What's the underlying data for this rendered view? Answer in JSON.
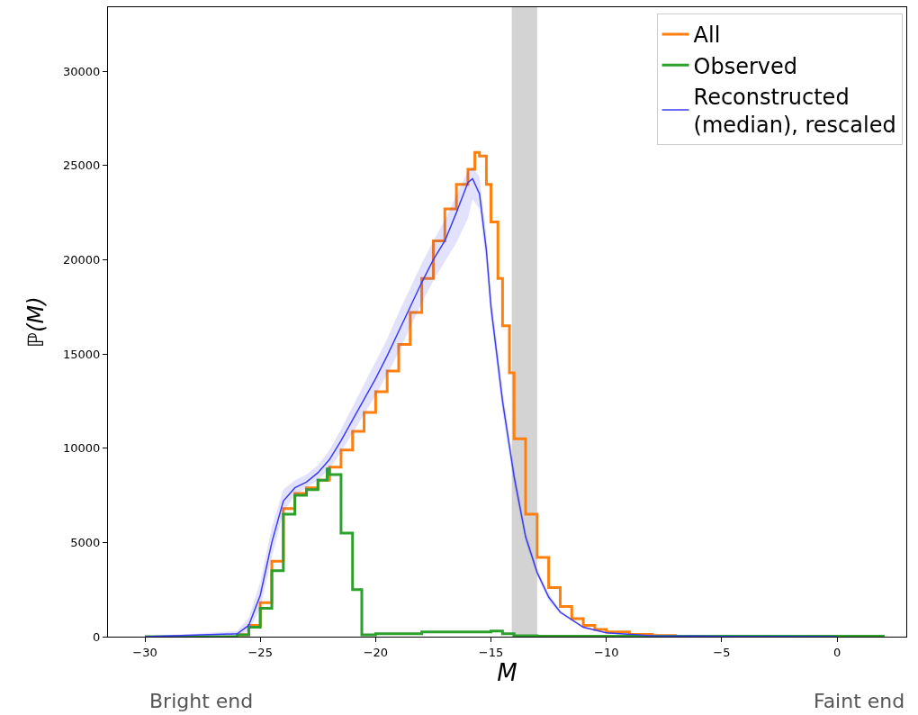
{
  "chart_data": {
    "type": "line",
    "xlabel": "M",
    "ylabel": "ℙ(M)",
    "xlim": [
      -31.6,
      3.0
    ],
    "ylim": [
      0,
      33400
    ],
    "xticks": [
      {
        "value": -30,
        "label": "−30"
      },
      {
        "value": -25,
        "label": "−25"
      },
      {
        "value": -20,
        "label": "−20"
      },
      {
        "value": -15,
        "label": "−15"
      },
      {
        "value": -10,
        "label": "−10"
      },
      {
        "value": -5,
        "label": "−5"
      },
      0
    ],
    "yticks": [
      0,
      5000,
      10000,
      15000,
      20000,
      25000,
      30000
    ],
    "grid": false,
    "legend": "top right",
    "bands": [
      {
        "axis": "x",
        "from": -14.1,
        "to": -13.0,
        "color": "#d3d3d3"
      }
    ],
    "annotations": [
      "Bright end",
      "Faint end"
    ],
    "series": [
      {
        "name": "All",
        "type": "step",
        "color": "#ff7f0e",
        "x": [
          -26,
          -25.5,
          -25,
          -24.5,
          -24,
          -23.5,
          -23,
          -22.5,
          -22,
          -21.5,
          -21,
          -20.5,
          -20,
          -19.5,
          -19,
          -18.5,
          -18,
          -17.5,
          -17,
          -16.5,
          -16,
          -15.7,
          -15.5,
          -15.2,
          -15,
          -14.7,
          -14.5,
          -14.2,
          -14,
          -13.5,
          -13,
          -12.5,
          -12,
          -11.5,
          -11,
          -10.5,
          -10,
          -9,
          -8,
          -7
        ],
        "values": [
          100,
          600,
          1800,
          4000,
          6800,
          7600,
          7900,
          8300,
          9000,
          9900,
          10900,
          11900,
          13000,
          14100,
          15500,
          17200,
          19000,
          21000,
          22700,
          24000,
          24800,
          25700,
          25500,
          24000,
          22000,
          19000,
          16500,
          14000,
          10500,
          6500,
          4200,
          2600,
          1600,
          950,
          600,
          380,
          250,
          120,
          60,
          30
        ]
      },
      {
        "name": "Observed",
        "type": "step",
        "color": "#2ca02c",
        "x": [
          -30,
          -27,
          -26,
          -25.5,
          -25,
          -24.5,
          -24,
          -23.5,
          -23,
          -22.5,
          -22.1,
          -22,
          -21.5,
          -21,
          -20.6,
          -20,
          -18,
          -15,
          -14.5,
          -14,
          -13,
          2
        ],
        "values": [
          0,
          0,
          100,
          500,
          1500,
          3500,
          6500,
          7500,
          7800,
          8300,
          8900,
          8600,
          5500,
          2500,
          100,
          150,
          250,
          300,
          150,
          50,
          20,
          0
        ]
      },
      {
        "name": "Reconstructed\n(median), rescaled",
        "color": "#3c3cf0",
        "x": [
          -30,
          -26,
          -25.5,
          -25,
          -24.5,
          -24,
          -23.5,
          -23,
          -22.5,
          -22,
          -21.5,
          -21,
          -20.5,
          -20,
          -19.5,
          -19,
          -18.5,
          -18,
          -17.5,
          -17,
          -16.5,
          -16,
          -15.8,
          -15.5,
          -15.2,
          -15,
          -14.5,
          -14,
          -13.5,
          -13,
          -12.5,
          -12,
          -11,
          -10,
          -8,
          -5,
          0
        ],
        "values": [
          0,
          150,
          600,
          2200,
          5000,
          7200,
          7900,
          8200,
          8700,
          9400,
          10400,
          11500,
          12600,
          13700,
          14900,
          16200,
          17500,
          18800,
          20000,
          21000,
          22500,
          24100,
          24300,
          23500,
          20500,
          17500,
          12500,
          8500,
          5300,
          3400,
          2100,
          1300,
          500,
          200,
          50,
          10,
          0
        ],
        "lower": [
          0,
          50,
          300,
          1500,
          4200,
          6600,
          7500,
          7900,
          8300,
          8900,
          9800,
          10800,
          11800,
          12800,
          13900,
          15100,
          16400,
          17700,
          18900,
          19900,
          20900,
          22200,
          23200,
          22700,
          19700,
          16800,
          11900,
          8000,
          5000,
          3200,
          1900,
          1200,
          450,
          170,
          40,
          5,
          0
        ],
        "upper": [
          0,
          300,
          1000,
          2900,
          5800,
          7800,
          8300,
          8600,
          9100,
          9900,
          11000,
          12200,
          13400,
          14600,
          15800,
          17200,
          18500,
          19800,
          21000,
          22100,
          23400,
          24700,
          24900,
          24400,
          21300,
          18200,
          13100,
          9000,
          5600,
          3600,
          2300,
          1400,
          550,
          230,
          60,
          15,
          0
        ]
      }
    ]
  }
}
